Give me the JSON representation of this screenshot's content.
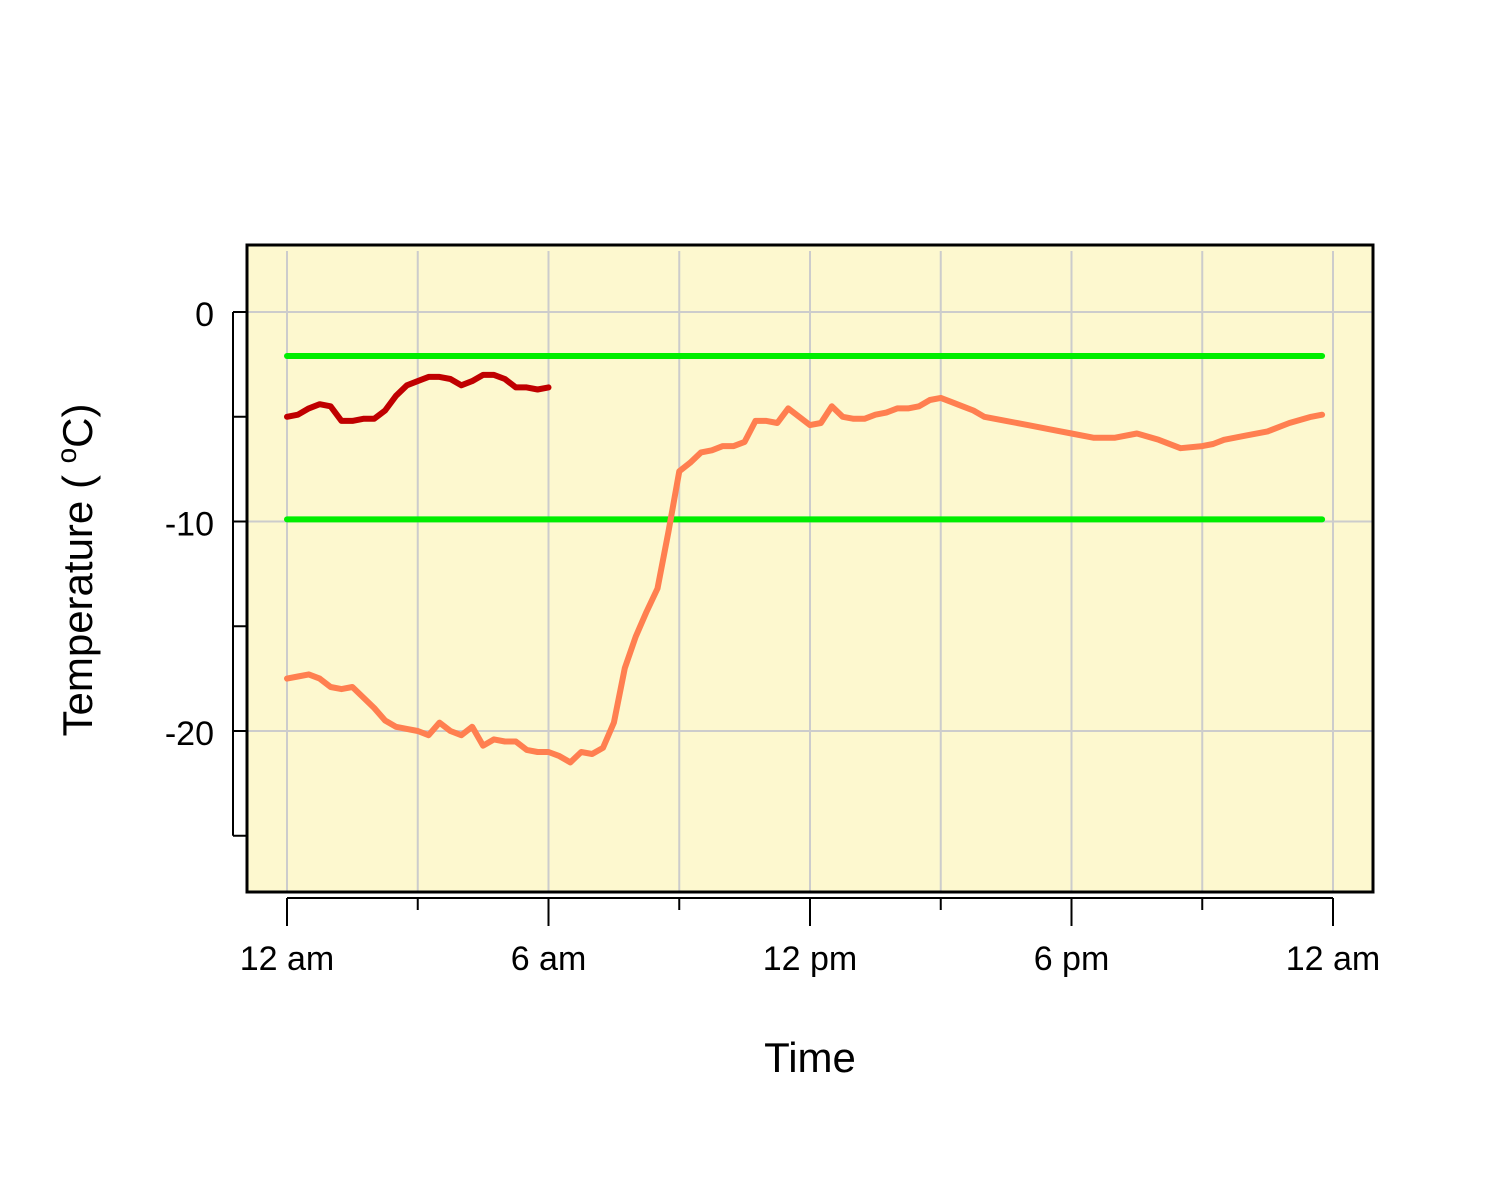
{
  "chart_data": {
    "type": "line",
    "title": "",
    "xlabel": "Time",
    "ylabel_parts": {
      "pre": "Temperature ( ",
      "deg": "o",
      "post": "C)"
    },
    "xlim": [
      0,
      24
    ],
    "ylim": [
      -27,
      3
    ],
    "x_ticks": [
      {
        "value": 0,
        "label": "12 am"
      },
      {
        "value": 3,
        "label": ""
      },
      {
        "value": 6,
        "label": "6 am"
      },
      {
        "value": 9,
        "label": ""
      },
      {
        "value": 12,
        "label": "12 pm"
      },
      {
        "value": 15,
        "label": ""
      },
      {
        "value": 18,
        "label": "6 pm"
      },
      {
        "value": 21,
        "label": ""
      },
      {
        "value": 24,
        "label": "12 am"
      }
    ],
    "y_ticks": [
      {
        "value": 0,
        "label": "0"
      },
      {
        "value": -5,
        "label": ""
      },
      {
        "value": -10,
        "label": "-10"
      },
      {
        "value": -15,
        "label": ""
      },
      {
        "value": -20,
        "label": "-20"
      },
      {
        "value": -25,
        "label": ""
      }
    ],
    "grid": true,
    "colors": {
      "background": "#fdf8cf",
      "grid": "#cccccc"
    },
    "series": [
      {
        "color": "#00ee00",
        "x": [
          0,
          23.75
        ],
        "y": [
          -2.1,
          -2.1
        ]
      },
      {
        "color": "#00ee00",
        "x": [
          0,
          23.75
        ],
        "y": [
          -9.9,
          -9.9
        ]
      },
      {
        "color": "#c00000",
        "x": [
          0,
          0.25,
          0.5,
          0.75,
          1.0,
          1.25,
          1.5,
          1.75,
          2.0,
          2.25,
          2.5,
          2.75,
          3.0,
          3.25,
          3.5,
          3.75,
          4.0,
          4.25,
          4.5,
          4.75,
          5.0,
          5.25,
          5.5,
          5.75,
          6.0
        ],
        "y": [
          -5.0,
          -4.9,
          -4.6,
          -4.4,
          -4.5,
          -5.2,
          -5.2,
          -5.1,
          -5.1,
          -4.7,
          -4.0,
          -3.5,
          -3.3,
          -3.1,
          -3.1,
          -3.2,
          -3.5,
          -3.3,
          -3.0,
          -3.0,
          -3.2,
          -3.6,
          -3.6,
          -3.7,
          -3.6
        ]
      },
      {
        "color": "#ff7f50",
        "x": [
          0,
          0.25,
          0.5,
          0.75,
          1.0,
          1.25,
          1.5,
          1.75,
          2.0,
          2.25,
          2.5,
          2.75,
          3.0,
          3.25,
          3.5,
          3.75,
          4.0,
          4.25,
          4.5,
          4.75,
          5.0,
          5.25,
          5.5,
          5.75,
          6.0,
          6.25,
          6.5,
          6.75,
          7.0,
          7.25,
          7.5,
          7.75,
          8.0,
          8.25,
          8.5,
          8.75,
          9.0,
          9.25,
          9.5,
          9.75,
          10.0,
          10.25,
          10.5,
          10.75,
          11.0,
          11.25,
          11.5,
          11.75,
          12.0,
          12.25,
          12.5,
          12.75,
          13.0,
          13.25,
          13.5,
          13.75,
          14.0,
          14.25,
          14.5,
          14.75,
          15.0,
          15.25,
          15.5,
          15.75,
          16.0,
          16.5,
          17.0,
          17.5,
          18.0,
          18.5,
          19.0,
          19.5,
          20.0,
          20.5,
          21.0,
          21.25,
          21.5,
          21.75,
          22.0,
          22.5,
          23.0,
          23.5,
          23.75
        ],
        "y": [
          -17.5,
          -17.4,
          -17.3,
          -17.5,
          -17.9,
          -18.0,
          -17.9,
          -18.4,
          -18.9,
          -19.5,
          -19.8,
          -19.9,
          -20.0,
          -20.2,
          -19.6,
          -20.0,
          -20.2,
          -19.8,
          -20.7,
          -20.4,
          -20.5,
          -20.5,
          -20.9,
          -21.0,
          -21.0,
          -21.2,
          -21.5,
          -21.0,
          -21.1,
          -20.8,
          -19.6,
          -17.0,
          -15.5,
          -14.3,
          -13.2,
          -10.5,
          -7.6,
          -7.2,
          -6.7,
          -6.6,
          -6.4,
          -6.4,
          -6.2,
          -5.2,
          -5.2,
          -5.3,
          -4.6,
          -5.0,
          -5.4,
          -5.3,
          -4.5,
          -5.0,
          -5.1,
          -5.1,
          -4.9,
          -4.8,
          -4.6,
          -4.6,
          -4.5,
          -4.2,
          -4.1,
          -4.3,
          -4.5,
          -4.7,
          -5.0,
          -5.2,
          -5.4,
          -5.6,
          -5.8,
          -6.0,
          -6.0,
          -5.8,
          -6.1,
          -6.5,
          -6.4,
          -6.3,
          -6.1,
          -6.0,
          -5.9,
          -5.7,
          -5.3,
          -5.0,
          -4.9
        ]
      }
    ]
  }
}
